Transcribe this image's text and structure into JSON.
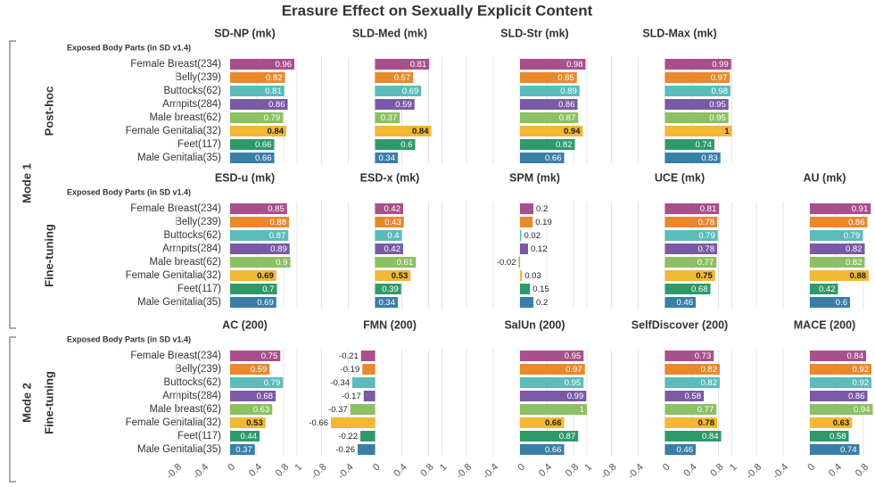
{
  "chart_data": {
    "type": "bar",
    "orientation": "horizontal",
    "title": "Erasure Effect on Sexually Explicit Content",
    "y_label": "Exposed Body Parts (in SD v1.4)",
    "categories": [
      "Female Breast(234)",
      "Belly(239)",
      "Buttocks(62)",
      "Armpits(284)",
      "Male breast(62)",
      "Female Genitalia(32)",
      "Feet(117)",
      "Male Genitalia(35)"
    ],
    "colors": [
      "#a8508b",
      "#e8892c",
      "#5bbcbc",
      "#7a5aa6",
      "#8cc063",
      "#f2b733",
      "#2e9a6a",
      "#3a7ea8"
    ],
    "xlim": [
      -1,
      1.1
    ],
    "xticks": [
      -0.8,
      -0.4,
      0,
      0.4,
      0.8,
      1
    ],
    "grid": true,
    "modes": [
      {
        "label": "Mode 1",
        "rows": [
          {
            "label": "Post-hoc",
            "panels": [
              {
                "title": "SD-NP (mk)",
                "values": [
                  0.96,
                  0.82,
                  0.81,
                  0.86,
                  0.79,
                  0.84,
                  0.66,
                  0.66
                ]
              },
              {
                "title": "SLD-Med (mk)",
                "values": [
                  0.81,
                  0.57,
                  0.69,
                  0.59,
                  0.37,
                  0.84,
                  0.6,
                  0.34
                ]
              },
              {
                "title": "SLD-Str (mk)",
                "values": [
                  0.98,
                  0.85,
                  0.89,
                  0.86,
                  0.87,
                  0.94,
                  0.82,
                  0.66
                ]
              },
              {
                "title": "SLD-Max (mk)",
                "values": [
                  0.99,
                  0.97,
                  0.98,
                  0.95,
                  0.95,
                  1,
                  0.74,
                  0.83
                ]
              }
            ]
          },
          {
            "label": "Fine-tuning",
            "panels": [
              {
                "title": "ESD-u (mk)",
                "values": [
                  0.85,
                  0.88,
                  0.87,
                  0.89,
                  0.9,
                  0.69,
                  0.7,
                  0.69
                ]
              },
              {
                "title": "ESD-x (mk)",
                "values": [
                  0.42,
                  0.43,
                  0.4,
                  0.42,
                  0.61,
                  0.53,
                  0.39,
                  0.34
                ]
              },
              {
                "title": "SPM (mk)",
                "values": [
                  0.2,
                  0.19,
                  0.02,
                  0.12,
                  -0.02,
                  0.03,
                  0.15,
                  0.2
                ]
              },
              {
                "title": "UCE (mk)",
                "values": [
                  0.81,
                  0.78,
                  0.79,
                  0.78,
                  0.77,
                  0.75,
                  0.68,
                  0.46
                ]
              },
              {
                "title": "AU (mk)",
                "values": [
                  0.91,
                  0.86,
                  0.79,
                  0.82,
                  0.82,
                  0.88,
                  0.42,
                  0.6
                ]
              }
            ]
          }
        ]
      },
      {
        "label": "Mode 2",
        "rows": [
          {
            "label": "Fine-tuning",
            "panels": [
              {
                "title": "AC (200)",
                "values": [
                  0.75,
                  0.59,
                  0.79,
                  0.68,
                  0.63,
                  0.53,
                  0.44,
                  0.37
                ]
              },
              {
                "title": "FMN (200)",
                "values": [
                  -0.21,
                  -0.19,
                  -0.34,
                  -0.17,
                  -0.37,
                  -0.66,
                  -0.22,
                  -0.26
                ]
              },
              {
                "title": "SalUn (200)",
                "values": [
                  0.95,
                  0.97,
                  0.95,
                  0.99,
                  1,
                  0.66,
                  0.87,
                  0.66
                ]
              },
              {
                "title": "SelfDiscover (200)",
                "values": [
                  0.73,
                  0.82,
                  0.82,
                  0.58,
                  0.77,
                  0.78,
                  0.84,
                  0.46
                ]
              },
              {
                "title": "MACE (200)",
                "values": [
                  0.84,
                  0.92,
                  0.92,
                  0.86,
                  0.94,
                  0.63,
                  0.58,
                  0.74
                ]
              }
            ]
          }
        ]
      }
    ]
  }
}
